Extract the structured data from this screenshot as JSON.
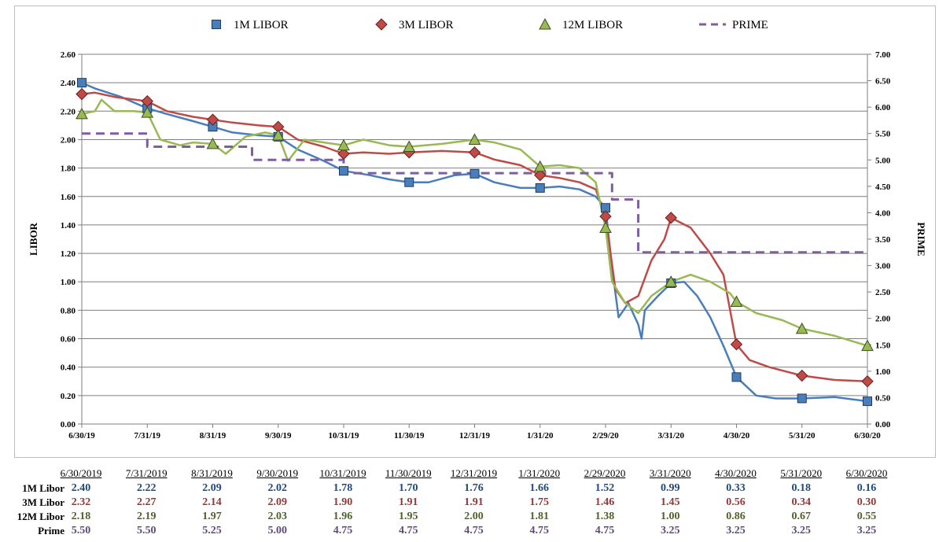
{
  "colors": {
    "libor1m": "#4a7ebb",
    "libor3m": "#be4b48",
    "libor12m": "#98b954",
    "prime": "#7d5fa0",
    "libor1m_text": "#1f497d",
    "libor3m_text": "#953735",
    "libor12m_text": "#4f6228",
    "prime_text": "#604a7b",
    "grid": "#7f7f7f"
  },
  "chart_data": {
    "type": "line",
    "x": [
      "6/30/19",
      "7/31/19",
      "8/31/19",
      "9/30/19",
      "10/31/19",
      "11/30/19",
      "12/31/19",
      "1/31/20",
      "2/29/20",
      "3/31/20",
      "4/30/20",
      "5/31/20",
      "6/30/20"
    ],
    "ylabel_left": "LIBOR",
    "ylabel_right": "PRIME",
    "yticks_left": [
      "0.00",
      "0.20",
      "0.40",
      "0.60",
      "0.80",
      "1.00",
      "1.20",
      "1.40",
      "1.60",
      "1.80",
      "2.00",
      "2.20",
      "2.40",
      "2.60"
    ],
    "yticks_right": [
      "0.00",
      "0.50",
      "1.00",
      "1.50",
      "2.00",
      "2.50",
      "3.00",
      "3.50",
      "4.00",
      "4.50",
      "5.00",
      "5.50",
      "6.00",
      "6.50",
      "7.00"
    ],
    "ylim_left": [
      0,
      2.6
    ],
    "ylim_right": [
      0,
      7.0
    ],
    "grid": true,
    "legend_position": "top",
    "series": [
      {
        "name": "1M LIBOR",
        "axis": "left",
        "marker": "square",
        "color": "#4a7ebb",
        "markers": [
          2.4,
          2.22,
          2.09,
          2.02,
          1.78,
          1.7,
          1.76,
          1.66,
          1.52,
          0.99,
          0.33,
          0.18,
          0.16
        ],
        "path": [
          [
            0,
            2.4
          ],
          [
            0.2,
            2.36
          ],
          [
            0.6,
            2.3
          ],
          [
            1.0,
            2.22
          ],
          [
            1.3,
            2.18
          ],
          [
            1.7,
            2.13
          ],
          [
            2.0,
            2.09
          ],
          [
            2.3,
            2.05
          ],
          [
            2.7,
            2.03
          ],
          [
            3.0,
            2.02
          ],
          [
            3.3,
            1.93
          ],
          [
            3.7,
            1.85
          ],
          [
            4.0,
            1.78
          ],
          [
            4.4,
            1.75
          ],
          [
            4.7,
            1.72
          ],
          [
            5.0,
            1.7
          ],
          [
            5.3,
            1.7
          ],
          [
            5.7,
            1.75
          ],
          [
            6.0,
            1.76
          ],
          [
            6.3,
            1.7
          ],
          [
            6.7,
            1.66
          ],
          [
            7.0,
            1.66
          ],
          [
            7.3,
            1.67
          ],
          [
            7.6,
            1.65
          ],
          [
            7.85,
            1.6
          ],
          [
            8.0,
            1.52
          ],
          [
            8.1,
            1.1
          ],
          [
            8.2,
            0.75
          ],
          [
            8.35,
            0.85
          ],
          [
            8.5,
            0.7
          ],
          [
            8.55,
            0.6
          ],
          [
            8.6,
            0.8
          ],
          [
            8.8,
            0.9
          ],
          [
            9.0,
            0.99
          ],
          [
            9.2,
            1.0
          ],
          [
            9.4,
            0.9
          ],
          [
            9.6,
            0.75
          ],
          [
            9.8,
            0.55
          ],
          [
            10.0,
            0.33
          ],
          [
            10.3,
            0.2
          ],
          [
            10.6,
            0.18
          ],
          [
            11.0,
            0.18
          ],
          [
            11.5,
            0.19
          ],
          [
            12.0,
            0.16
          ]
        ]
      },
      {
        "name": "3M LIBOR",
        "axis": "left",
        "marker": "diamond",
        "color": "#be4b48",
        "markers": [
          2.32,
          2.27,
          2.14,
          2.09,
          1.9,
          1.91,
          1.91,
          1.75,
          1.46,
          1.45,
          0.56,
          0.34,
          0.3
        ],
        "path": [
          [
            0,
            2.32
          ],
          [
            0.2,
            2.33
          ],
          [
            0.5,
            2.3
          ],
          [
            1.0,
            2.27
          ],
          [
            1.3,
            2.2
          ],
          [
            1.7,
            2.16
          ],
          [
            2.0,
            2.14
          ],
          [
            2.3,
            2.12
          ],
          [
            2.7,
            2.1
          ],
          [
            3.0,
            2.09
          ],
          [
            3.3,
            2.0
          ],
          [
            3.7,
            1.95
          ],
          [
            4.0,
            1.9
          ],
          [
            4.3,
            1.91
          ],
          [
            4.7,
            1.9
          ],
          [
            5.0,
            1.91
          ],
          [
            5.5,
            1.92
          ],
          [
            6.0,
            1.91
          ],
          [
            6.3,
            1.86
          ],
          [
            6.7,
            1.82
          ],
          [
            7.0,
            1.75
          ],
          [
            7.3,
            1.73
          ],
          [
            7.6,
            1.7
          ],
          [
            7.85,
            1.65
          ],
          [
            8.0,
            1.46
          ],
          [
            8.15,
            0.95
          ],
          [
            8.3,
            0.85
          ],
          [
            8.5,
            0.9
          ],
          [
            8.7,
            1.15
          ],
          [
            8.9,
            1.3
          ],
          [
            9.0,
            1.45
          ],
          [
            9.3,
            1.38
          ],
          [
            9.6,
            1.2
          ],
          [
            9.8,
            1.05
          ],
          [
            10.0,
            0.56
          ],
          [
            10.2,
            0.45
          ],
          [
            10.5,
            0.4
          ],
          [
            11.0,
            0.34
          ],
          [
            11.5,
            0.31
          ],
          [
            12.0,
            0.3
          ]
        ]
      },
      {
        "name": "12M LIBOR",
        "axis": "left",
        "marker": "triangle",
        "color": "#98b954",
        "markers": [
          2.18,
          2.19,
          1.97,
          2.03,
          1.96,
          1.95,
          2.0,
          1.81,
          1.38,
          1.0,
          0.86,
          0.67,
          0.55
        ],
        "path": [
          [
            0,
            2.18
          ],
          [
            0.2,
            2.2
          ],
          [
            0.3,
            2.28
          ],
          [
            0.5,
            2.2
          ],
          [
            0.8,
            2.2
          ],
          [
            1.0,
            2.19
          ],
          [
            1.2,
            2.0
          ],
          [
            1.5,
            1.96
          ],
          [
            1.7,
            1.98
          ],
          [
            2.0,
            1.97
          ],
          [
            2.2,
            1.9
          ],
          [
            2.5,
            2.02
          ],
          [
            2.8,
            2.05
          ],
          [
            3.0,
            2.03
          ],
          [
            3.15,
            1.85
          ],
          [
            3.4,
            2.0
          ],
          [
            3.7,
            1.98
          ],
          [
            4.0,
            1.96
          ],
          [
            4.3,
            2.0
          ],
          [
            4.7,
            1.96
          ],
          [
            5.0,
            1.95
          ],
          [
            5.5,
            1.97
          ],
          [
            6.0,
            2.0
          ],
          [
            6.3,
            1.98
          ],
          [
            6.7,
            1.93
          ],
          [
            7.0,
            1.81
          ],
          [
            7.3,
            1.82
          ],
          [
            7.6,
            1.8
          ],
          [
            7.85,
            1.7
          ],
          [
            8.0,
            1.38
          ],
          [
            8.1,
            1.0
          ],
          [
            8.3,
            0.85
          ],
          [
            8.5,
            0.78
          ],
          [
            8.7,
            0.9
          ],
          [
            9.0,
            1.0
          ],
          [
            9.3,
            1.05
          ],
          [
            9.6,
            1.0
          ],
          [
            9.9,
            0.92
          ],
          [
            10.0,
            0.86
          ],
          [
            10.3,
            0.78
          ],
          [
            10.7,
            0.73
          ],
          [
            11.0,
            0.67
          ],
          [
            11.5,
            0.62
          ],
          [
            12.0,
            0.55
          ]
        ]
      },
      {
        "name": "PRIME",
        "axis": "right",
        "marker": "none",
        "dashed": true,
        "color": "#7d5fa0",
        "markers": [
          5.5,
          5.5,
          5.25,
          5.0,
          4.75,
          4.75,
          4.75,
          4.75,
          4.75,
          3.25,
          3.25,
          3.25,
          3.25
        ],
        "path": [
          [
            0,
            5.5
          ],
          [
            1.0,
            5.5
          ],
          [
            1.0,
            5.25
          ],
          [
            2.6,
            5.25
          ],
          [
            2.6,
            5.0
          ],
          [
            4.0,
            5.0
          ],
          [
            4.0,
            4.75
          ],
          [
            8.1,
            4.75
          ],
          [
            8.1,
            4.25
          ],
          [
            8.5,
            4.25
          ],
          [
            8.5,
            3.25
          ],
          [
            12.0,
            3.25
          ]
        ]
      }
    ]
  },
  "table": {
    "headers": [
      "6/30/2019",
      "7/31/2019",
      "8/31/2019",
      "9/30/2019",
      "10/31/2019",
      "11/30/2019",
      "12/31/2019",
      "1/31/2020",
      "2/29/2020",
      "3/31/2020",
      "4/30/2020",
      "5/31/2020",
      "6/30/2020"
    ],
    "rows": [
      {
        "label": "1M Libor",
        "color": "#1f497d",
        "values": [
          "2.40",
          "2.22",
          "2.09",
          "2.02",
          "1.78",
          "1.70",
          "1.76",
          "1.66",
          "1.52",
          "0.99",
          "0.33",
          "0.18",
          "0.16"
        ]
      },
      {
        "label": "3M Libor",
        "color": "#953735",
        "values": [
          "2.32",
          "2.27",
          "2.14",
          "2.09",
          "1.90",
          "1.91",
          "1.91",
          "1.75",
          "1.46",
          "1.45",
          "0.56",
          "0.34",
          "0.30"
        ]
      },
      {
        "label": "12M Libor",
        "color": "#4f6228",
        "values": [
          "2.18",
          "2.19",
          "1.97",
          "2.03",
          "1.96",
          "1.95",
          "2.00",
          "1.81",
          "1.38",
          "1.00",
          "0.86",
          "0.67",
          "0.55"
        ]
      },
      {
        "label": "Prime",
        "color": "#604a7b",
        "values": [
          "5.50",
          "5.50",
          "5.25",
          "5.00",
          "4.75",
          "4.75",
          "4.75",
          "4.75",
          "4.75",
          "3.25",
          "3.25",
          "3.25",
          "3.25"
        ]
      }
    ]
  }
}
